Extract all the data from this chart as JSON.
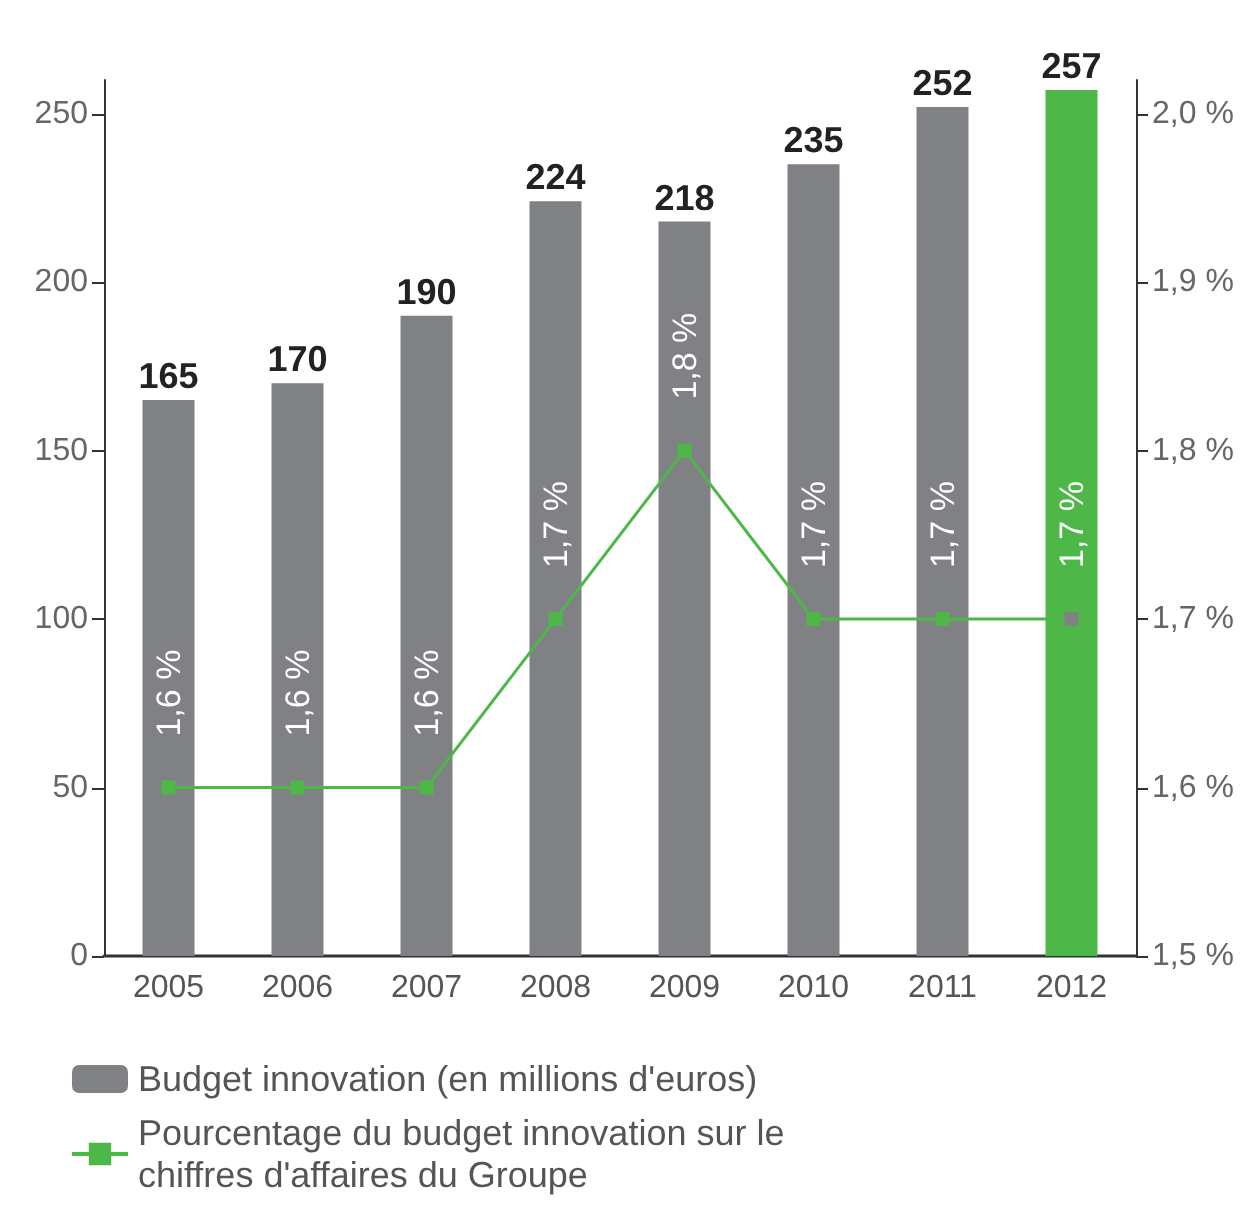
{
  "chart_data": {
    "type": "bar",
    "categories": [
      "2005",
      "2006",
      "2007",
      "2008",
      "2009",
      "2010",
      "2011",
      "2012"
    ],
    "series": [
      {
        "name": "Budget innovation (en millions d'euros)",
        "color": "#808185",
        "colors": [
          "#808185",
          "#808185",
          "#808185",
          "#808185",
          "#808185",
          "#808185",
          "#808185",
          "#4db748"
        ],
        "values": [
          165,
          170,
          190,
          224,
          218,
          235,
          252,
          257
        ]
      },
      {
        "name": "Pourcentage du budget innovation sur le chiffres d'affaires du Groupe",
        "type": "line",
        "axis": "y2",
        "color": "#4db748",
        "colors": [
          "#4db748",
          "#4db748",
          "#4db748",
          "#4db748",
          "#4db748",
          "#4db748",
          "#4db748",
          "#808185"
        ],
        "values": [
          1.6,
          1.6,
          1.6,
          1.7,
          1.8,
          1.7,
          1.7,
          1.7
        ],
        "value_labels": [
          "1,6 %",
          "1,6 %",
          "1,6 %",
          "1,7 %",
          "1,8 %",
          "1,7 %",
          "1,7 %",
          "1,7 %"
        ]
      }
    ],
    "data_labels": true,
    "ylim": [
      0,
      260
    ],
    "yticks": [
      0,
      50,
      100,
      150,
      200,
      250
    ],
    "y2lim": [
      1.5,
      2.02
    ],
    "y2ticks": [
      {
        "value": 1.5,
        "label": "1,5 %"
      },
      {
        "value": 1.6,
        "label": "1,6 %"
      },
      {
        "value": 1.7,
        "label": "1,7 %"
      },
      {
        "value": 1.8,
        "label": "1,8 %"
      },
      {
        "value": 1.9,
        "label": "1,9 %"
      },
      {
        "value": 2.0,
        "label": "2,0 %"
      }
    ],
    "grid": false,
    "legend": "bottom left",
    "marker": "square",
    "line_style": "solid"
  }
}
